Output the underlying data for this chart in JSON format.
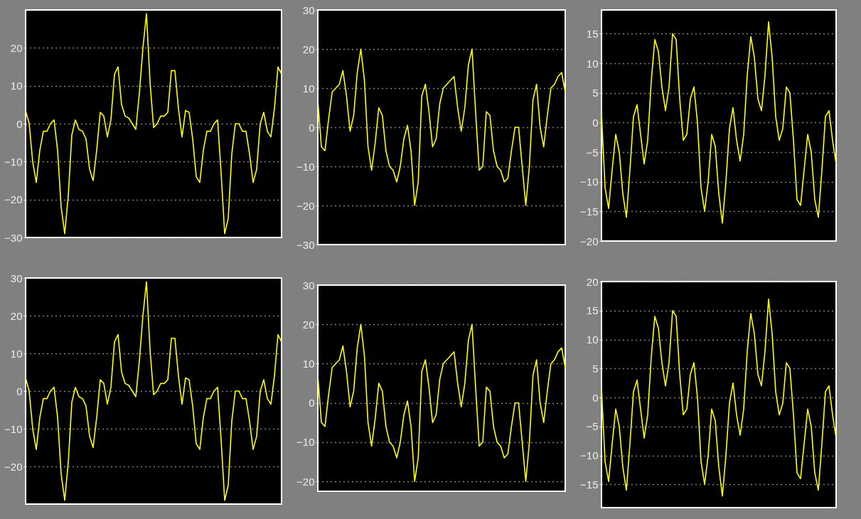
{
  "chart_data": [
    {
      "type": "line",
      "categories": [
        null,
        null,
        null,
        null,
        null,
        null,
        null,
        null,
        null,
        null,
        null,
        null,
        null,
        null,
        null,
        null,
        null,
        null,
        null,
        null,
        null,
        null,
        null,
        null,
        null,
        null,
        null,
        null,
        null,
        null,
        null,
        null,
        null,
        null,
        null,
        null,
        null,
        null,
        null,
        null,
        null,
        null,
        null,
        null,
        null,
        null,
        null,
        null,
        null,
        null,
        null,
        null,
        null,
        null,
        null,
        null,
        null,
        null,
        null,
        null,
        null,
        null,
        null,
        null,
        null,
        null,
        null,
        null,
        null,
        null,
        null,
        null,
        null
      ],
      "series": [
        {
          "color": "#ffff00",
          "values": [
            3.5,
            0,
            -10,
            -15.5,
            -7,
            -2,
            -2,
            0,
            1,
            -7,
            -22,
            -29,
            -19,
            -3,
            1,
            -1.5,
            -2,
            -4,
            -12,
            -15,
            -7,
            3,
            2,
            -3.5,
            1,
            13,
            15,
            5,
            2,
            1.5,
            0,
            -1.5,
            8,
            20,
            29,
            11,
            -1,
            0,
            2,
            2,
            3,
            14,
            14,
            4,
            -3.5,
            3.5,
            3,
            -4,
            -14,
            -15.5,
            -7,
            -2,
            -2,
            0,
            1,
            -13,
            -29,
            -25,
            -8,
            0,
            0,
            -2,
            -2,
            -8,
            -15.5,
            -12,
            0,
            3,
            -2,
            -3.5,
            4,
            15,
            13
          ]
        }
      ],
      "ylim": [
        -30,
        30
      ],
      "yticks": [
        -30,
        -20,
        -10,
        0,
        10,
        20
      ],
      "grid": "y",
      "tick_labels": "y"
    },
    {
      "type": "line",
      "categories": [
        null,
        null,
        null,
        null,
        null,
        null,
        null,
        null,
        null,
        null,
        null,
        null,
        null,
        null,
        null,
        null,
        null,
        null,
        null,
        null,
        null,
        null,
        null,
        null,
        null,
        null,
        null,
        null,
        null,
        null,
        null,
        null,
        null,
        null,
        null,
        null,
        null,
        null,
        null,
        null,
        null,
        null,
        null,
        null,
        null,
        null,
        null,
        null,
        null,
        null,
        null,
        null,
        null,
        null,
        null,
        null,
        null,
        null,
        null,
        null,
        null,
        null,
        null,
        null,
        null,
        null,
        null,
        null,
        null,
        null
      ],
      "series": [
        {
          "color": "#ffff00",
          "values": [
            7,
            -5,
            -6,
            2,
            9,
            10,
            11,
            14.5,
            8,
            -1,
            3,
            14,
            20,
            12,
            -5,
            -11,
            -4,
            5,
            3,
            -6,
            -10,
            -11,
            -14,
            -10,
            -3,
            0.5,
            -6,
            -20,
            -14,
            8,
            11,
            4,
            -5,
            -3,
            6,
            10,
            11,
            12,
            13,
            5,
            -1,
            5,
            16,
            20,
            4,
            -11,
            -10,
            4,
            3,
            -6,
            -10,
            -11,
            -14,
            -13,
            -6,
            0,
            0,
            -10,
            -20,
            -10,
            7,
            11,
            0,
            -5,
            3,
            10,
            11,
            13,
            14,
            9
          ]
        }
      ],
      "ylim": [
        -30,
        30
      ],
      "yticks": [
        -30,
        -20,
        -10,
        0,
        10,
        20,
        30
      ],
      "grid": "y",
      "tick_labels": "y"
    },
    {
      "type": "line",
      "categories": [
        null,
        null,
        null,
        null,
        null,
        null,
        null,
        null,
        null,
        null,
        null,
        null,
        null,
        null,
        null,
        null,
        null,
        null,
        null,
        null,
        null,
        null,
        null,
        null,
        null,
        null,
        null,
        null,
        null,
        null,
        null,
        null,
        null,
        null,
        null,
        null,
        null,
        null,
        null,
        null,
        null,
        null,
        null,
        null,
        null,
        null,
        null,
        null,
        null,
        null,
        null,
        null,
        null,
        null,
        null,
        null,
        null,
        null,
        null,
        null,
        null,
        null,
        null,
        null,
        null,
        null,
        null
      ],
      "series": [
        {
          "color": "#ffff00",
          "values": [
            1.5,
            -11,
            -14.5,
            -8,
            -2,
            -5,
            -12,
            -16,
            -8,
            1,
            3,
            -2,
            -7,
            -3,
            7,
            14,
            12,
            6,
            2,
            6,
            15,
            14,
            4,
            -3,
            -2,
            4,
            6,
            0,
            -11,
            -15,
            -10,
            -2,
            -4,
            -12,
            -17,
            -10,
            -1,
            2.5,
            -3,
            -6.5,
            -2,
            8,
            14.5,
            11,
            4,
            2,
            8,
            17,
            11,
            1,
            -3,
            -1,
            6,
            5,
            -3,
            -13,
            -14,
            -8,
            -2,
            -5,
            -13,
            -16,
            -8,
            1,
            2,
            -3,
            -7
          ]
        }
      ],
      "ylim": [
        -20,
        19
      ],
      "yticks": [
        -20,
        -15,
        -10,
        -5,
        0,
        5,
        10,
        15
      ],
      "grid": "y",
      "tick_labels": "y"
    },
    {
      "type": "line",
      "categories": [
        null,
        null,
        null,
        null,
        null,
        null,
        null,
        null,
        null,
        null,
        null,
        null,
        null,
        null,
        null,
        null,
        null,
        null,
        null,
        null,
        null,
        null,
        null,
        null,
        null,
        null,
        null,
        null,
        null,
        null,
        null,
        null,
        null,
        null,
        null,
        null,
        null,
        null,
        null,
        null,
        null,
        null,
        null,
        null,
        null,
        null,
        null,
        null,
        null,
        null,
        null,
        null,
        null,
        null,
        null,
        null,
        null,
        null,
        null,
        null,
        null,
        null,
        null,
        null,
        null,
        null,
        null,
        null,
        null,
        null,
        null,
        null,
        null
      ],
      "series": [
        {
          "color": "#ffff00",
          "values": [
            3.5,
            0,
            -10,
            -15.5,
            -7,
            -2,
            -2,
            0,
            1,
            -7,
            -22,
            -29,
            -19,
            -3,
            1,
            -1.5,
            -2,
            -4,
            -12,
            -15,
            -7,
            3,
            2,
            -3.5,
            1,
            13,
            15,
            5,
            2,
            1.5,
            0,
            -1.5,
            8,
            20,
            29,
            11,
            -1,
            0,
            2,
            2,
            3,
            14,
            14,
            4,
            -3.5,
            3.5,
            3,
            -4,
            -14,
            -15.5,
            -7,
            -2,
            -2,
            0,
            1,
            -13,
            -29,
            -25,
            -8,
            0,
            0,
            -2,
            -2,
            -8,
            -15.5,
            -12,
            0,
            3,
            -2,
            -3.5,
            4,
            15,
            13
          ]
        }
      ],
      "ylim": [
        -30,
        30
      ],
      "yticks": [
        -20,
        -10,
        0,
        10,
        20,
        30
      ],
      "grid": "y",
      "tick_labels": "y"
    },
    {
      "type": "line",
      "categories": [
        null,
        null,
        null,
        null,
        null,
        null,
        null,
        null,
        null,
        null,
        null,
        null,
        null,
        null,
        null,
        null,
        null,
        null,
        null,
        null,
        null,
        null,
        null,
        null,
        null,
        null,
        null,
        null,
        null,
        null,
        null,
        null,
        null,
        null,
        null,
        null,
        null,
        null,
        null,
        null,
        null,
        null,
        null,
        null,
        null,
        null,
        null,
        null,
        null,
        null,
        null,
        null,
        null,
        null,
        null,
        null,
        null,
        null,
        null,
        null,
        null,
        null,
        null,
        null,
        null,
        null,
        null,
        null,
        null,
        null
      ],
      "series": [
        {
          "color": "#ffff00",
          "values": [
            7,
            -5,
            -6,
            2,
            9,
            10,
            11,
            14.5,
            8,
            -1,
            3,
            14,
            20,
            12,
            -5,
            -11,
            -4,
            5,
            3,
            -6,
            -10,
            -11,
            -14,
            -10,
            -3,
            0.5,
            -6,
            -20,
            -14,
            8,
            11,
            4,
            -5,
            -3,
            6,
            10,
            11,
            12,
            13,
            5,
            -1,
            5,
            16,
            20,
            4,
            -11,
            -10,
            4,
            3,
            -6,
            -10,
            -11,
            -14,
            -13,
            -6,
            0,
            0,
            -10,
            -20,
            -10,
            7,
            11,
            0,
            -5,
            3,
            10,
            11,
            13,
            14,
            9
          ]
        }
      ],
      "ylim": [
        -22.5,
        30
      ],
      "yticks": [
        -20,
        -10,
        0,
        10,
        20,
        30
      ],
      "grid": "y",
      "tick_labels": "y"
    },
    {
      "type": "line",
      "categories": [
        null,
        null,
        null,
        null,
        null,
        null,
        null,
        null,
        null,
        null,
        null,
        null,
        null,
        null,
        null,
        null,
        null,
        null,
        null,
        null,
        null,
        null,
        null,
        null,
        null,
        null,
        null,
        null,
        null,
        null,
        null,
        null,
        null,
        null,
        null,
        null,
        null,
        null,
        null,
        null,
        null,
        null,
        null,
        null,
        null,
        null,
        null,
        null,
        null,
        null,
        null,
        null,
        null,
        null,
        null,
        null,
        null,
        null,
        null,
        null,
        null,
        null,
        null,
        null,
        null,
        null,
        null
      ],
      "series": [
        {
          "color": "#ffff00",
          "values": [
            1.5,
            -11,
            -14.5,
            -8,
            -2,
            -5,
            -12,
            -16,
            -8,
            1,
            3,
            -2,
            -7,
            -3,
            7,
            14,
            12,
            6,
            2,
            6,
            15,
            14,
            4,
            -3,
            -2,
            4,
            6,
            0,
            -11,
            -15,
            -10,
            -2,
            -4,
            -12,
            -17,
            -10,
            -1,
            2.5,
            -3,
            -6.5,
            -2,
            8,
            14.5,
            11,
            4,
            2,
            8,
            17,
            11,
            1,
            -3,
            -1,
            6,
            5,
            -3,
            -13,
            -14,
            -8,
            -2,
            -5,
            -13,
            -16,
            -8,
            1,
            2,
            -3,
            -7
          ]
        }
      ],
      "ylim": [
        -19,
        20
      ],
      "yticks": [
        -15,
        -10,
        -5,
        0,
        5,
        10,
        15,
        20
      ],
      "grid": "y",
      "tick_labels": "y"
    }
  ]
}
